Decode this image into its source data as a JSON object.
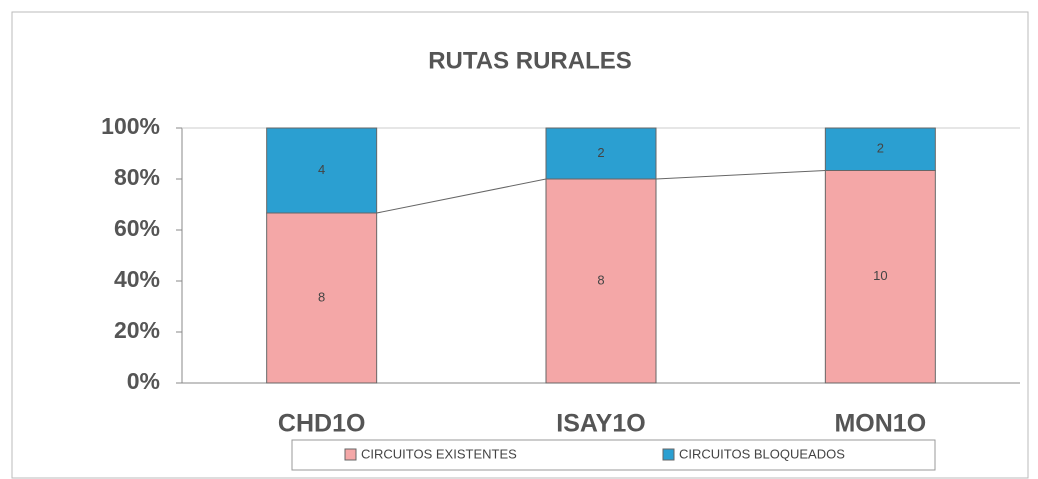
{
  "chart_data": {
    "type": "bar",
    "stacking": "percent",
    "title": "RUTAS RURALES",
    "categories": [
      "CHD1O",
      "ISAY1O",
      "MON1O"
    ],
    "series": [
      {
        "name": "CIRCUITOS EXISTENTES",
        "color": "#f4a7a7",
        "values": [
          8,
          8,
          10
        ]
      },
      {
        "name": "CIRCUITOS BLOQUEADOS",
        "color": "#2b9fd1",
        "values": [
          4,
          2,
          2
        ]
      }
    ],
    "ylim": [
      0,
      100
    ],
    "yticks": [
      {
        "value": 0,
        "label": "0%"
      },
      {
        "value": 20,
        "label": "20%"
      },
      {
        "value": 40,
        "label": "40%"
      },
      {
        "value": 60,
        "label": "60%"
      },
      {
        "value": 80,
        "label": "80%"
      },
      {
        "value": 100,
        "label": "100%"
      }
    ],
    "series_lines": true,
    "legend": "bottom"
  }
}
